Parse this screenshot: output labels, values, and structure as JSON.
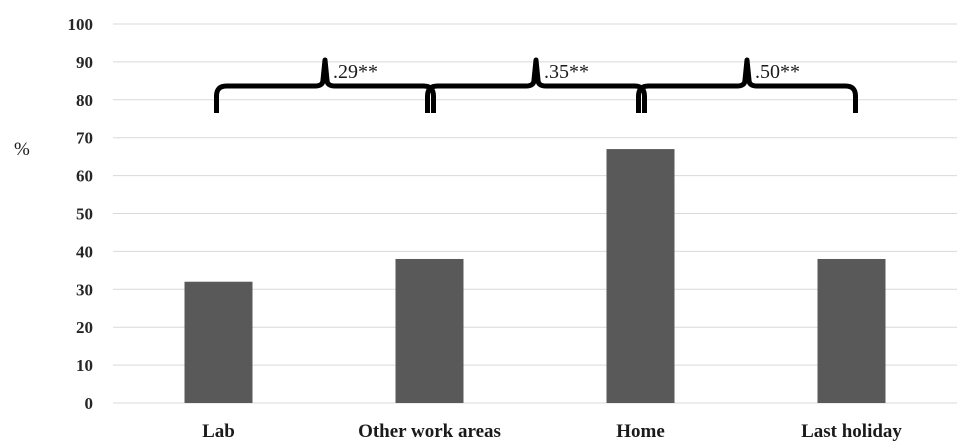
{
  "chart_data": {
    "type": "bar",
    "categories": [
      "Lab",
      "Other work areas",
      "Home",
      "Last holiday"
    ],
    "values": [
      32,
      38,
      67,
      38
    ],
    "ylabel": "%",
    "ylim": [
      0,
      100
    ],
    "yticks": [
      0,
      10,
      20,
      30,
      40,
      50,
      60,
      70,
      80,
      90,
      100
    ],
    "grid": true,
    "bar_color": "#595959",
    "annotations": [
      {
        "label": ".29**",
        "from_category": "Lab",
        "to_category": "Other work areas"
      },
      {
        "label": ".35**",
        "from_category": "Other work areas",
        "to_category": "Home"
      },
      {
        "label": ".50**",
        "from_category": "Home",
        "to_category": "Last holiday"
      }
    ]
  }
}
